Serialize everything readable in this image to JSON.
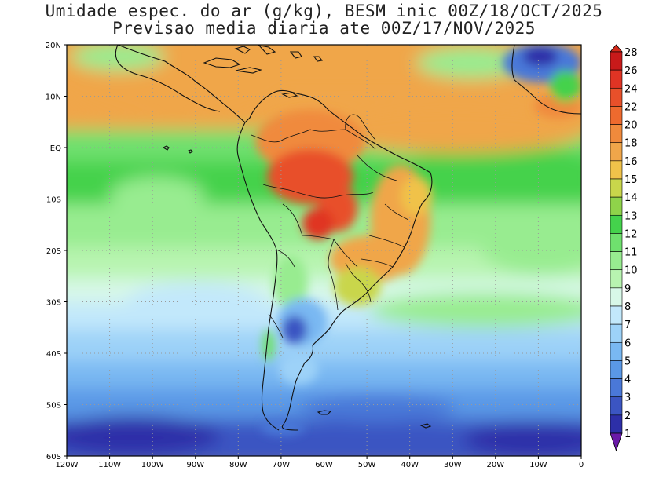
{
  "title": {
    "line1": "Umidade espec. do ar (g/kg), BESM inic 00Z/18/OCT/2025",
    "line2": "Previsao media diaria ate 00Z/17/NOV/2025"
  },
  "map": {
    "lon_labels": [
      "120W",
      "110W",
      "100W",
      "90W",
      "80W",
      "70W",
      "60W",
      "50W",
      "40W",
      "30W",
      "20W",
      "10W",
      "0"
    ],
    "lat_labels": [
      "20N",
      "10N",
      "EQ",
      "10S",
      "20S",
      "30S",
      "40S",
      "50S",
      "60S"
    ],
    "region": "South America and adjacent Atlantic/Pacific"
  },
  "colorbar": {
    "levels": [
      "1",
      "2",
      "3",
      "4",
      "5",
      "6",
      "7",
      "8",
      "9",
      "10",
      "11",
      "12",
      "13",
      "14",
      "15",
      "16",
      "18",
      "20",
      "22",
      "24",
      "26",
      "28"
    ],
    "colors": [
      "#4b1aa0",
      "#2d2fa8",
      "#3b55c2",
      "#4a78d8",
      "#5a98e6",
      "#79b8f2",
      "#9dd2f8",
      "#c2e8fb",
      "#d8f8e8",
      "#b8f4b0",
      "#98ec90",
      "#6fe06e",
      "#44d24c",
      "#8fd34a",
      "#c9d64b",
      "#f0c24a",
      "#f0a64a",
      "#f08a3c",
      "#ee6a2e",
      "#e8502a",
      "#e03424",
      "#c81a1a"
    ],
    "under_color": "#6a1aa8",
    "over_color": "#d42a1a"
  }
}
